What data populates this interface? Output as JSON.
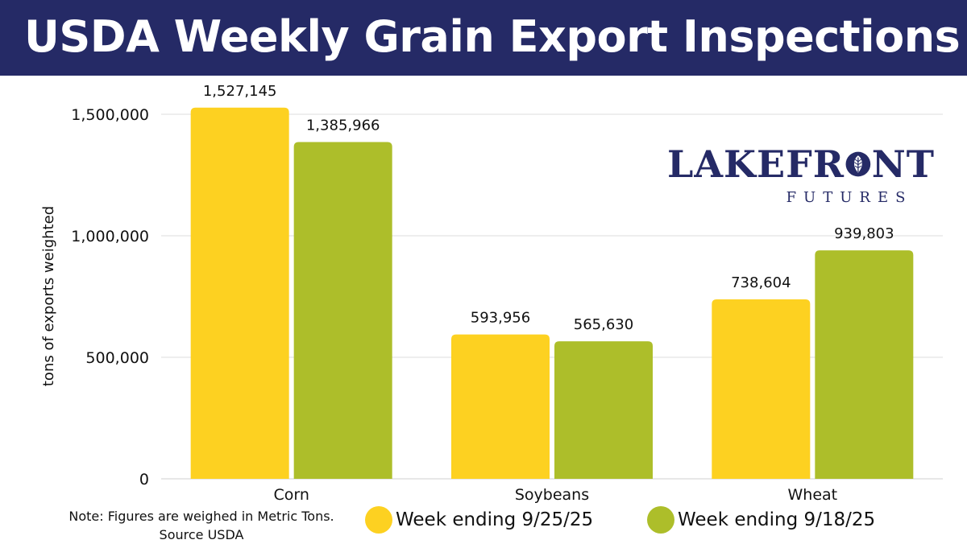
{
  "header": {
    "title": "USDA Weekly Grain Export Inspections"
  },
  "logo": {
    "main": "LAKEFRONT",
    "sub": "FUTURES"
  },
  "note": {
    "line1": "Note: Figures are weighed in Metric Tons.",
    "line2": "Source USDA"
  },
  "colors": {
    "header_bg": "#252a66",
    "series1": "#fdd121",
    "series2": "#adbe2a",
    "grid": "#d9d9d9"
  },
  "chart_data": {
    "type": "bar",
    "title": "USDA Weekly Grain Export Inspections",
    "xlabel": "",
    "ylabel": "tons of exports weighted",
    "ylim": [
      0,
      1500000
    ],
    "yticks": [
      0,
      500000,
      1000000,
      1500000
    ],
    "ytick_labels": [
      "0",
      "500,000",
      "1,000,000",
      "1,500,000"
    ],
    "categories": [
      "Corn",
      "Soybeans",
      "Wheat"
    ],
    "grid": true,
    "legend_position": "bottom",
    "series": [
      {
        "name": "Week ending 9/25/25",
        "color": "#fdd121",
        "values": [
          1527145,
          593956,
          738604
        ],
        "labels": [
          "1,527,145",
          "593,956",
          "738,604"
        ]
      },
      {
        "name": "Week ending 9/18/25",
        "color": "#adbe2a",
        "values": [
          1385966,
          565630,
          939803
        ],
        "labels": [
          "1,385,966",
          "565,630",
          "939,803"
        ]
      }
    ]
  }
}
